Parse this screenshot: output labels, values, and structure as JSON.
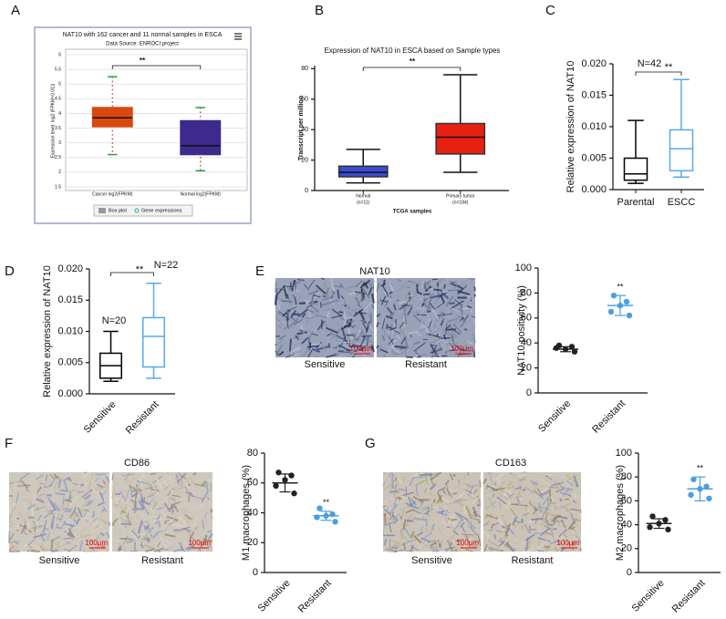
{
  "chart_data": [
    {
      "type": "box",
      "panel": "A",
      "title": "NAT10 with 162 cancer and 11 normal samples in ESCA",
      "subtitle": "Data Source: ENROCI project",
      "y_label": "Expression level: log2 (FPKM+0.01))",
      "categories": [
        "Cancer log2(FPKM)",
        "Normal log2(FPKM)"
      ],
      "min": [
        2.6,
        2.05
      ],
      "q1": [
        3.55,
        2.6
      ],
      "median": [
        3.85,
        2.9
      ],
      "q3": [
        4.2,
        3.75
      ],
      "max": [
        5.25,
        4.2
      ],
      "colors": [
        "#d9480f",
        "#3d2a8c"
      ],
      "ylim": [
        1.5,
        6
      ],
      "yticks": [
        1.5,
        2,
        2.5,
        3,
        3.5,
        4,
        4.5,
        5,
        5.5,
        6
      ],
      "grid": true,
      "annotations": [
        "**"
      ],
      "legend": [
        "Box plot",
        "Gene expressions"
      ]
    },
    {
      "type": "box",
      "panel": "B",
      "title": "Expression of NAT10 in ESCA based on Sample types",
      "y_label": "Transcript per million",
      "x_label": "TCGA samples",
      "categories": [
        "Normal",
        "Primary tumor"
      ],
      "category_notes": [
        "(n=11)",
        "(n=184)"
      ],
      "min": [
        5,
        12
      ],
      "q1": [
        9,
        24
      ],
      "median": [
        12,
        35
      ],
      "q3": [
        16,
        44
      ],
      "max": [
        27,
        76
      ],
      "colors": [
        "#3a4bd0",
        "#e82010"
      ],
      "ylim": [
        0,
        82
      ],
      "yticks": [
        0,
        20,
        40,
        60,
        80
      ],
      "grid": false,
      "annotations": [
        "**"
      ]
    },
    {
      "type": "box",
      "panel": "C",
      "y_label": "Relative expression of NAT10",
      "categories": [
        "Parental",
        "ESCC"
      ],
      "min": [
        0.001,
        0.002
      ],
      "q1": [
        0.0015,
        0.003
      ],
      "median": [
        0.0025,
        0.0065
      ],
      "q3": [
        0.005,
        0.0095
      ],
      "max": [
        0.011,
        0.0175
      ],
      "colors": [
        "#000000",
        "#5aa9e6"
      ],
      "ylim": [
        0,
        0.02
      ],
      "yticks": [
        {
          "value": 0,
          "label": "0.000"
        },
        {
          "value": 0.005,
          "label": "0.005"
        },
        {
          "value": 0.01,
          "label": "0.010"
        },
        {
          "value": 0.015,
          "label": "0.015"
        },
        {
          "value": 0.02,
          "label": "0.020"
        }
      ],
      "grid": false,
      "annotations": [
        "N=42",
        "**"
      ]
    },
    {
      "type": "box",
      "panel": "D",
      "y_label": "Relative expression of NAT10",
      "categories": [
        "Sensitive",
        "Resistant"
      ],
      "min": [
        0.002,
        0.0025
      ],
      "q1": [
        0.0025,
        0.0043
      ],
      "median": [
        0.0045,
        0.0092
      ],
      "q3": [
        0.0065,
        0.0122
      ],
      "max": [
        0.01,
        0.0177
      ],
      "colors": [
        "#000000",
        "#5aa9e6"
      ],
      "ylim": [
        0,
        0.02
      ],
      "yticks": [
        {
          "value": 0,
          "label": "0.000"
        },
        {
          "value": 0.005,
          "label": "0.005"
        },
        {
          "value": 0.01,
          "label": "0.010"
        },
        {
          "value": 0.015,
          "label": "0.015"
        },
        {
          "value": 0.02,
          "label": "0.020"
        }
      ],
      "grid": false,
      "annotations": [
        "N=20",
        "N=22",
        "**"
      ]
    },
    {
      "type": "dot",
      "panel": "E",
      "y_label": "NAT10 positivity (%)",
      "categories": [
        "Sensitive",
        "Resistant"
      ],
      "points": [
        [
          38,
          37,
          35,
          36,
          33
        ],
        [
          78,
          73,
          70,
          65,
          62
        ]
      ],
      "mean": [
        35,
        70
      ],
      "sd": [
        2,
        8
      ],
      "colors": [
        "#222222",
        "#4a9fe0"
      ],
      "ylim": [
        0,
        100
      ],
      "yticks": [
        0,
        20,
        40,
        60,
        80,
        100
      ],
      "grid": false,
      "annotations": [
        "**"
      ]
    },
    {
      "type": "dot",
      "panel": "F",
      "y_label": "M1 macrophages (%)",
      "categories": [
        "Sensitive",
        "Resistant"
      ],
      "points": [
        [
          67,
          65,
          62,
          58,
          53
        ],
        [
          43,
          39,
          38,
          37,
          34
        ]
      ],
      "mean": [
        60,
        38
      ],
      "sd": [
        6,
        3
      ],
      "colors": [
        "#222222",
        "#4a9fe0"
      ],
      "ylim": [
        0,
        80
      ],
      "yticks": [
        0,
        20,
        40,
        60,
        80
      ],
      "grid": false,
      "annotations": [
        "**"
      ]
    },
    {
      "type": "dot",
      "panel": "G",
      "y_label": "M2 macrophages (%)",
      "categories": [
        "Sensitive",
        "Resistant"
      ],
      "points": [
        [
          47,
          44,
          41,
          38,
          36
        ],
        [
          78,
          72,
          70,
          65,
          62
        ]
      ],
      "mean": [
        41,
        70
      ],
      "sd": [
        4,
        10
      ],
      "colors": [
        "#222222",
        "#4a9fe0"
      ],
      "ylim": [
        0,
        100
      ],
      "yticks": [
        0,
        20,
        40,
        60,
        80,
        100
      ],
      "grid": false,
      "annotations": [
        "**"
      ]
    }
  ],
  "images": [
    {
      "title": "NAT10",
      "captions": [
        "Sensitive",
        "Resistant"
      ],
      "scale_bar": "100μm"
    },
    {
      "title": "CD86",
      "captions": [
        "Sensitive",
        "Resistant"
      ],
      "scale_bar": "100μm"
    },
    {
      "title": "CD163",
      "captions": [
        "Sensitive",
        "Resistant"
      ],
      "scale_bar": "100μm"
    }
  ]
}
